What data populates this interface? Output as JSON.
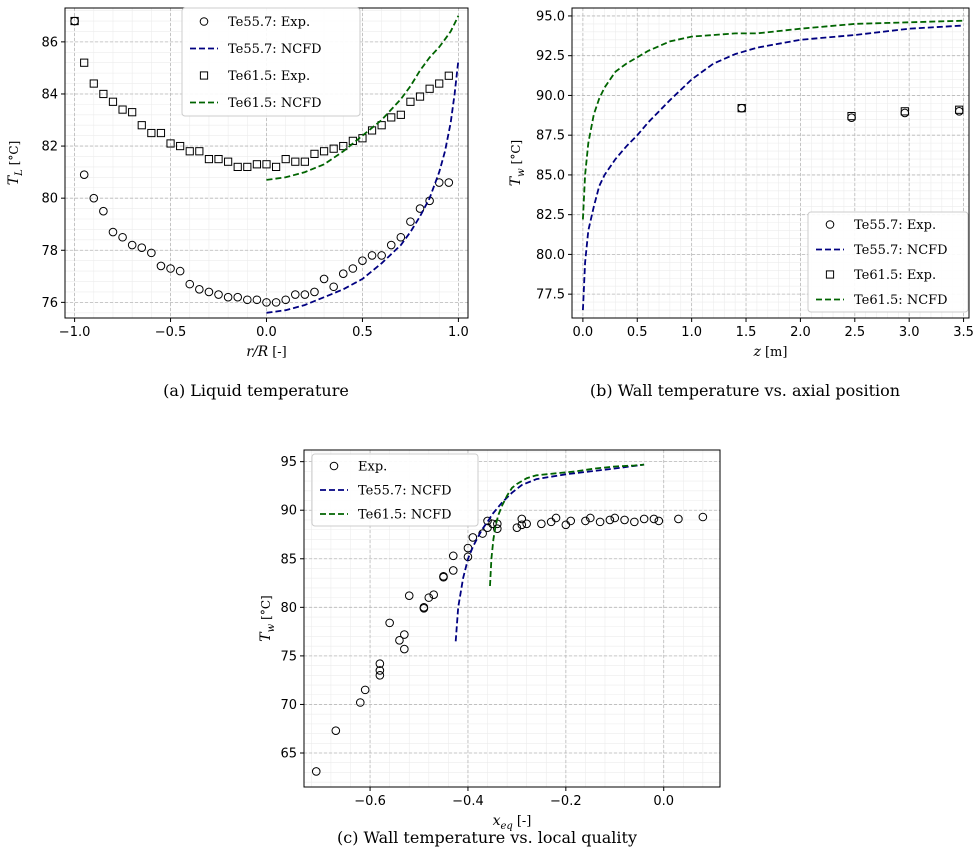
{
  "chart_data": [
    {
      "id": "a",
      "type": "scatter",
      "caption": "(a) Liquid temperature",
      "xlabel": "r/R [-]",
      "ylabel": "T_L [°C]",
      "xlim": [
        -1.05,
        1.05
      ],
      "ylim": [
        75.4,
        87.3
      ],
      "xticks": [
        -1.0,
        -0.5,
        0.0,
        0.5,
        1.0
      ],
      "xtick_labels": [
        "−1.0",
        "−0.5",
        "0.0",
        "0.5",
        "1.0"
      ],
      "yticks": [
        76,
        78,
        80,
        82,
        84,
        86
      ],
      "ytick_labels": [
        "76",
        "78",
        "80",
        "82",
        "84",
        "86"
      ],
      "grid": true,
      "legend_position": "top-right",
      "series": [
        {
          "name": "Te55.7: Exp.",
          "style": "circle",
          "color": "#000000",
          "x": [
            -1.0,
            -0.95,
            -0.9,
            -0.85,
            -0.8,
            -0.75,
            -0.7,
            -0.65,
            -0.6,
            -0.55,
            -0.5,
            -0.45,
            -0.4,
            -0.35,
            -0.3,
            -0.25,
            -0.2,
            -0.15,
            -0.1,
            -0.05,
            0.0,
            0.05,
            0.1,
            0.15,
            0.2,
            0.25,
            0.3,
            0.35,
            0.4,
            0.45,
            0.5,
            0.55,
            0.6,
            0.65,
            0.7,
            0.75,
            0.8,
            0.85,
            0.9,
            0.95
          ],
          "y": [
            86.8,
            80.9,
            80.0,
            79.5,
            78.7,
            78.5,
            78.2,
            78.1,
            77.9,
            77.4,
            77.3,
            77.2,
            76.7,
            76.5,
            76.4,
            76.3,
            76.2,
            76.2,
            76.1,
            76.1,
            76.0,
            76.0,
            76.1,
            76.3,
            76.3,
            76.4,
            76.9,
            76.6,
            77.1,
            77.3,
            77.6,
            77.8,
            77.8,
            78.2,
            78.5,
            79.1,
            79.6,
            79.9,
            80.6,
            80.6
          ]
        },
        {
          "name": "Te55.7: NCFD",
          "style": "dashed",
          "color": "#000080",
          "x": [
            0.0,
            0.1,
            0.2,
            0.3,
            0.4,
            0.5,
            0.6,
            0.7,
            0.75,
            0.8,
            0.85,
            0.9,
            0.93,
            0.96,
            0.98,
            1.0
          ],
          "y": [
            75.6,
            75.7,
            75.9,
            76.2,
            76.5,
            76.9,
            77.5,
            78.2,
            78.7,
            79.3,
            80.0,
            81.0,
            81.8,
            82.9,
            84.0,
            85.3
          ]
        },
        {
          "name": "Te61.5: Exp.",
          "style": "square",
          "color": "#000000",
          "x": [
            -1.0,
            -0.95,
            -0.9,
            -0.85,
            -0.8,
            -0.75,
            -0.7,
            -0.65,
            -0.6,
            -0.55,
            -0.5,
            -0.45,
            -0.4,
            -0.35,
            -0.3,
            -0.25,
            -0.2,
            -0.15,
            -0.1,
            -0.05,
            0.0,
            0.05,
            0.1,
            0.15,
            0.2,
            0.25,
            0.3,
            0.35,
            0.4,
            0.45,
            0.5,
            0.55,
            0.6,
            0.65,
            0.7,
            0.75,
            0.8,
            0.85,
            0.9,
            0.95
          ],
          "y": [
            86.8,
            85.2,
            84.4,
            84.0,
            83.7,
            83.4,
            83.3,
            82.8,
            82.5,
            82.5,
            82.1,
            82.0,
            81.8,
            81.8,
            81.5,
            81.5,
            81.4,
            81.2,
            81.2,
            81.3,
            81.3,
            81.2,
            81.5,
            81.4,
            81.4,
            81.7,
            81.8,
            81.9,
            82.0,
            82.2,
            82.3,
            82.6,
            82.8,
            83.1,
            83.2,
            83.7,
            83.9,
            84.2,
            84.4,
            84.7
          ]
        },
        {
          "name": "Te61.5: NCFD",
          "style": "dashed",
          "color": "#006400",
          "x": [
            0.0,
            0.1,
            0.2,
            0.3,
            0.4,
            0.5,
            0.6,
            0.7,
            0.75,
            0.8,
            0.85,
            0.9,
            0.93,
            0.96,
            0.98,
            1.0
          ],
          "y": [
            80.7,
            80.8,
            81.0,
            81.3,
            81.8,
            82.4,
            83.0,
            83.8,
            84.3,
            84.9,
            85.4,
            85.8,
            86.1,
            86.4,
            86.7,
            87.0
          ]
        }
      ]
    },
    {
      "id": "b",
      "type": "line",
      "caption": "(b) Wall temperature vs. axial position",
      "xlabel": "z [m]",
      "ylabel": "T_w [°C]",
      "xlim": [
        -0.1,
        3.55
      ],
      "ylim": [
        76.0,
        95.5
      ],
      "xticks": [
        0.0,
        0.5,
        1.0,
        1.5,
        2.0,
        2.5,
        3.0,
        3.5
      ],
      "xtick_labels": [
        "0.0",
        "0.5",
        "1.0",
        "1.5",
        "2.0",
        "2.5",
        "3.0",
        "3.5"
      ],
      "yticks": [
        77.5,
        80.0,
        82.5,
        85.0,
        87.5,
        90.0,
        92.5,
        95.0
      ],
      "ytick_labels": [
        "77.5",
        "80.0",
        "82.5",
        "85.0",
        "87.5",
        "90.0",
        "92.5",
        "95.0"
      ],
      "grid": true,
      "legend_position": "bottom-right",
      "series": [
        {
          "name": "Te55.7: Exp.",
          "style": "circle",
          "color": "#000000",
          "x": [
            1.46,
            2.47,
            2.96,
            3.46
          ],
          "y": [
            89.2,
            88.6,
            88.9,
            89.0
          ]
        },
        {
          "name": "Te55.7: NCFD",
          "style": "dashed",
          "color": "#000080",
          "x": [
            0.0,
            0.02,
            0.05,
            0.1,
            0.15,
            0.2,
            0.3,
            0.4,
            0.5,
            0.6,
            0.8,
            1.0,
            1.2,
            1.4,
            1.6,
            2.0,
            2.5,
            3.0,
            3.5
          ],
          "y": [
            76.5,
            79.5,
            81.5,
            83.0,
            84.3,
            85.0,
            86.0,
            86.8,
            87.5,
            88.3,
            89.7,
            91.0,
            92.0,
            92.6,
            93.0,
            93.5,
            93.8,
            94.2,
            94.4
          ]
        },
        {
          "name": "Te61.5: Exp.",
          "style": "square",
          "color": "#000000",
          "x": [
            1.46,
            2.47,
            2.96,
            3.46
          ],
          "y": [
            89.2,
            88.7,
            89.0,
            89.1
          ]
        },
        {
          "name": "Te61.5: NCFD",
          "style": "dashed",
          "color": "#006400",
          "x": [
            0.0,
            0.02,
            0.05,
            0.1,
            0.15,
            0.2,
            0.3,
            0.4,
            0.5,
            0.6,
            0.8,
            1.0,
            1.2,
            1.4,
            1.6,
            2.0,
            2.5,
            3.0,
            3.5
          ],
          "y": [
            82.2,
            85.0,
            87.0,
            88.8,
            89.8,
            90.5,
            91.5,
            92.0,
            92.4,
            92.8,
            93.4,
            93.7,
            93.8,
            93.9,
            93.9,
            94.2,
            94.5,
            94.6,
            94.7
          ]
        }
      ]
    },
    {
      "id": "c",
      "type": "scatter",
      "caption": "(c) Wall temperature vs. local quality",
      "xlabel": "x_eq [-]",
      "ylabel": "T_w [°C]",
      "xlim": [
        -0.735,
        0.115
      ],
      "ylim": [
        61.5,
        96.2
      ],
      "xticks": [
        -0.6,
        -0.4,
        -0.2,
        0.0
      ],
      "xtick_labels": [
        "−0.6",
        "−0.4",
        "−0.2",
        "0.0"
      ],
      "yticks": [
        65,
        70,
        75,
        80,
        85,
        90,
        95
      ],
      "ytick_labels": [
        "65",
        "70",
        "75",
        "80",
        "85",
        "90",
        "95"
      ],
      "grid": true,
      "legend_position": "top-left",
      "series": [
        {
          "name": "Exp.",
          "style": "circle",
          "color": "#000000",
          "x": [
            -0.71,
            -0.67,
            -0.62,
            -0.61,
            -0.58,
            -0.58,
            -0.58,
            -0.56,
            -0.54,
            -0.53,
            -0.53,
            -0.52,
            -0.49,
            -0.49,
            -0.48,
            -0.47,
            -0.45,
            -0.45,
            -0.43,
            -0.43,
            -0.4,
            -0.4,
            -0.39,
            -0.37,
            -0.36,
            -0.36,
            -0.35,
            -0.34,
            -0.34,
            -0.3,
            -0.29,
            -0.29,
            -0.28,
            -0.25,
            -0.23,
            -0.22,
            -0.2,
            -0.19,
            -0.16,
            -0.15,
            -0.13,
            -0.11,
            -0.1,
            -0.08,
            -0.06,
            -0.04,
            -0.02,
            -0.01,
            0.03,
            0.08
          ],
          "y": [
            63.1,
            67.3,
            70.2,
            71.5,
            73.0,
            73.5,
            74.2,
            78.4,
            76.6,
            77.2,
            75.7,
            81.2,
            79.9,
            80.0,
            81.0,
            81.3,
            83.1,
            83.2,
            83.8,
            85.3,
            85.2,
            86.1,
            87.2,
            87.6,
            88.9,
            88.2,
            88.6,
            88.1,
            88.6,
            88.2,
            88.5,
            89.1,
            88.6,
            88.6,
            88.8,
            89.2,
            88.5,
            88.9,
            88.9,
            89.2,
            88.8,
            89.0,
            89.2,
            89.0,
            88.8,
            89.1,
            89.1,
            88.9,
            89.1,
            89.3
          ]
        },
        {
          "name": "Te55.7: NCFD",
          "style": "dashed",
          "color": "#000080",
          "x": [
            -0.425,
            -0.42,
            -0.41,
            -0.4,
            -0.39,
            -0.38,
            -0.37,
            -0.36,
            -0.35,
            -0.33,
            -0.31,
            -0.29,
            -0.26,
            -0.2,
            -0.15,
            -0.1,
            -0.04
          ],
          "y": [
            76.5,
            80.0,
            83.0,
            85.0,
            86.2,
            87.2,
            88.1,
            88.8,
            89.6,
            90.8,
            91.8,
            92.6,
            93.2,
            93.7,
            94.0,
            94.3,
            94.7
          ]
        },
        {
          "name": "Te61.5: NCFD",
          "style": "dashed",
          "color": "#006400",
          "x": [
            -0.355,
            -0.352,
            -0.348,
            -0.343,
            -0.338,
            -0.33,
            -0.32,
            -0.31,
            -0.3,
            -0.28,
            -0.26,
            -0.22,
            -0.18,
            -0.14,
            -0.1,
            -0.06,
            -0.04
          ],
          "y": [
            82.2,
            85.0,
            87.0,
            88.5,
            89.5,
            90.5,
            91.5,
            92.3,
            92.7,
            93.3,
            93.6,
            93.8,
            94.0,
            94.3,
            94.5,
            94.6,
            94.7
          ]
        }
      ]
    }
  ]
}
